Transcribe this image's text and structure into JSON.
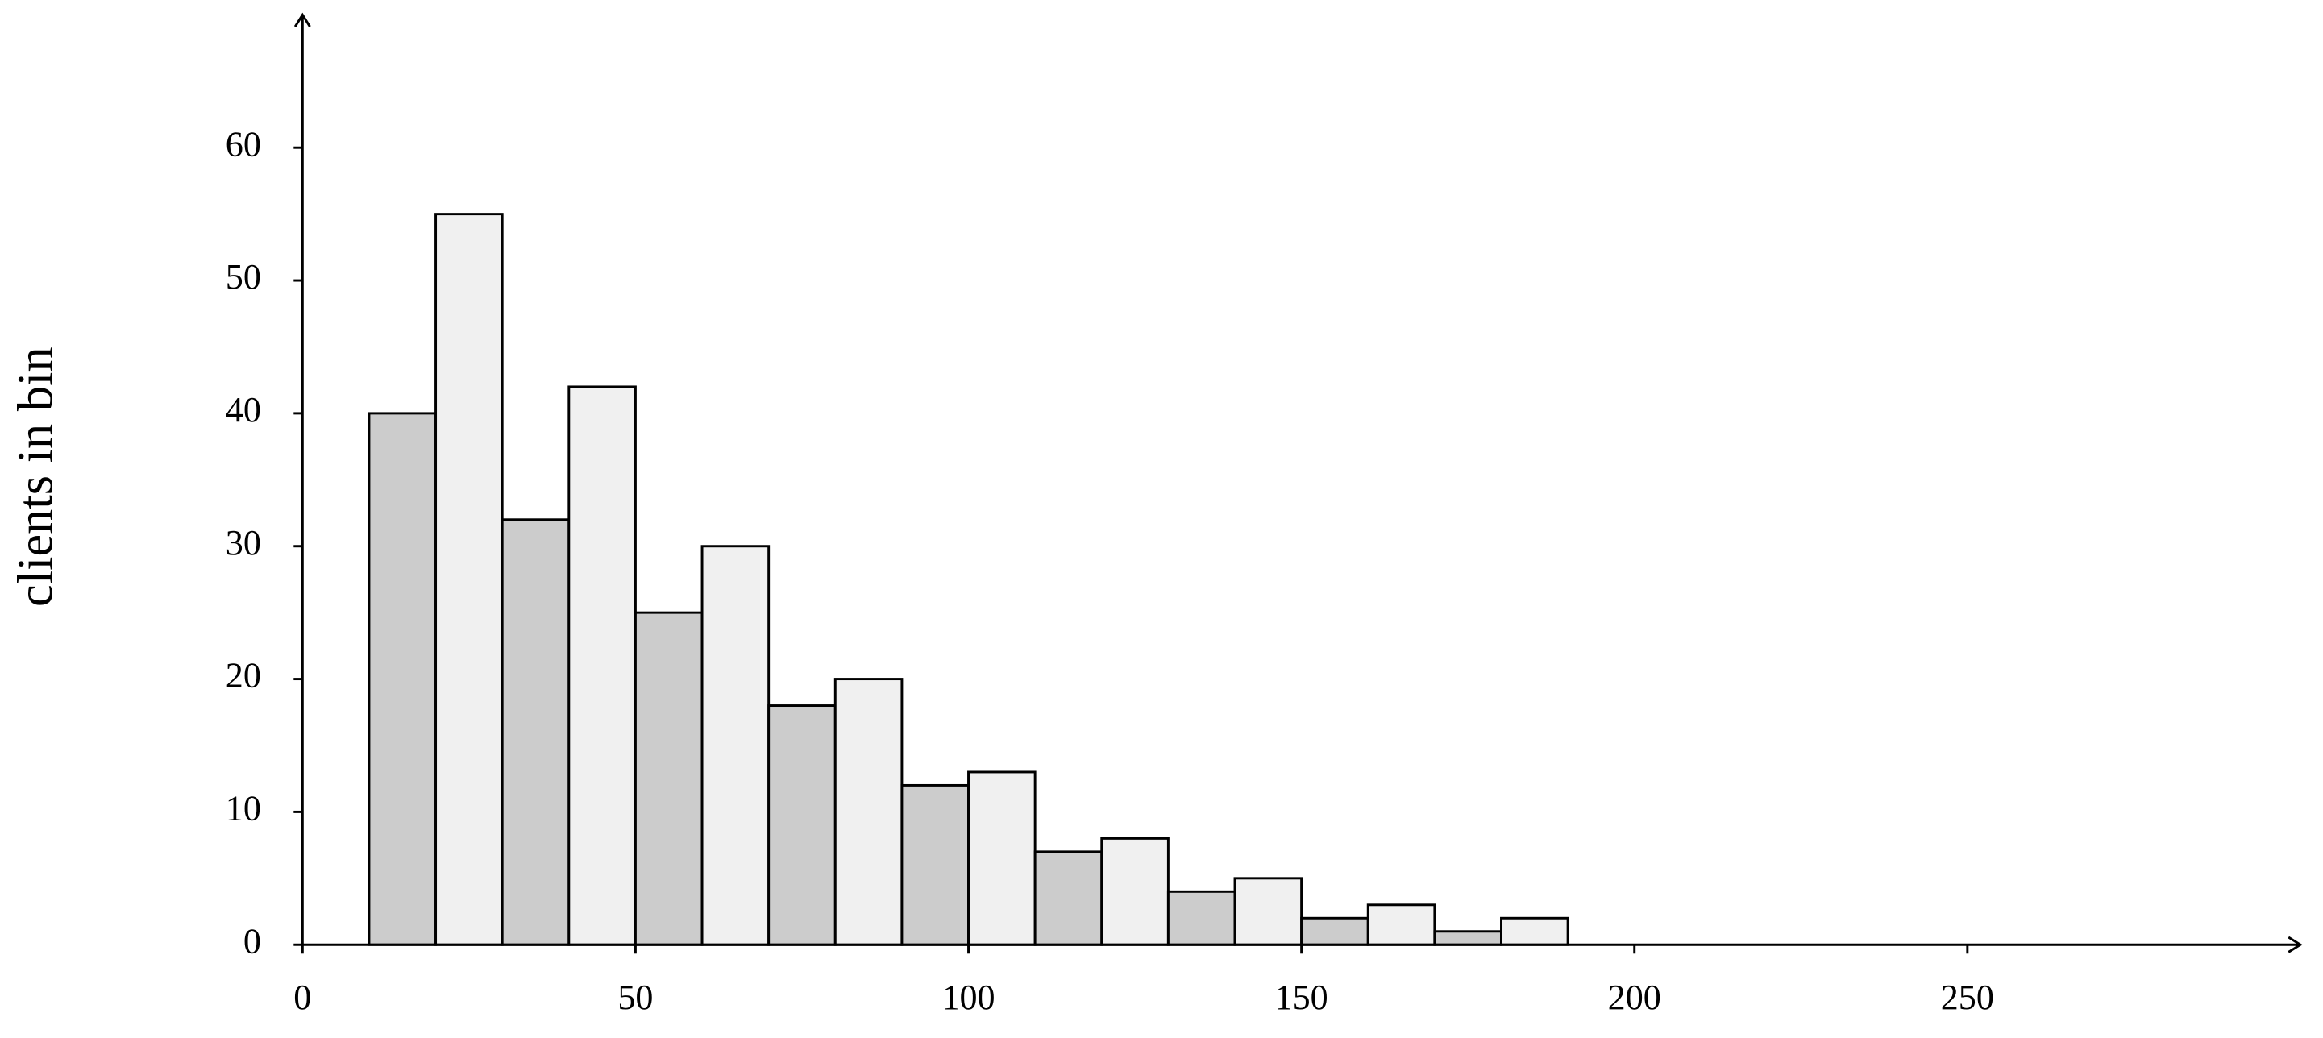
{
  "chart_data": {
    "type": "histogram",
    "y_label": "clients in bin",
    "bins": [
      10,
      20,
      30,
      40,
      50,
      60,
      70,
      80,
      90,
      100,
      110,
      120,
      130,
      140,
      150,
      160,
      170,
      180,
      190
    ],
    "counts": [
      40,
      55,
      32,
      42,
      25,
      30,
      18,
      20,
      12,
      13,
      7,
      8,
      4,
      5,
      2,
      3,
      1,
      2
    ],
    "colors": [
      "#cccccc",
      "#f0f0f0"
    ],
    "xlim": [
      0,
      300
    ],
    "xticks": [
      0,
      50,
      100,
      150,
      200,
      250
    ],
    "ylim": [
      0,
      70
    ],
    "yticks": [
      0,
      10,
      20,
      30,
      40,
      50,
      60
    ]
  }
}
